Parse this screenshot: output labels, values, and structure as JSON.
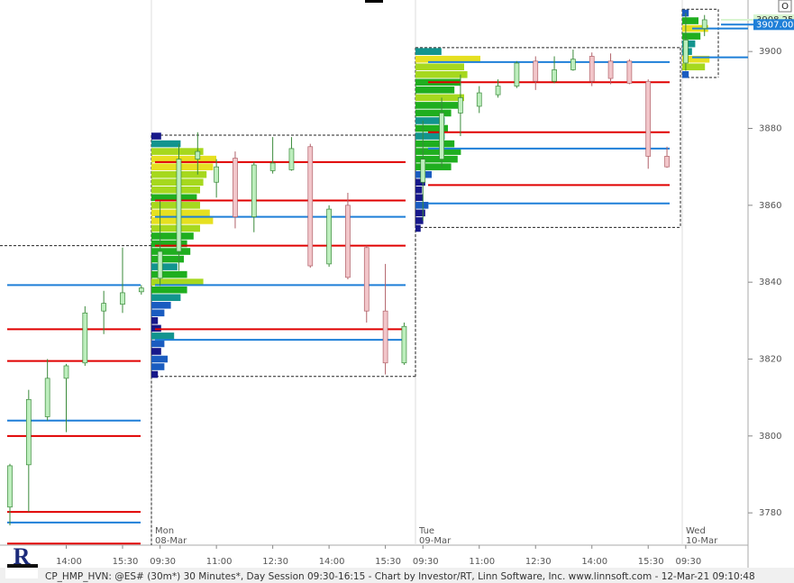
{
  "chart_data": {
    "type": "candlestick",
    "footer": "CP_HMP_HVN: @ES# (30m*) 30 Minutes*, Day Session 09:30-16:15 - Chart by Investor/RT, Linn Software, Inc. www.linnsoft.com - 12-Mar-21 09:10:48",
    "logo": "R",
    "button": "O",
    "up_color": "#bdeebd",
    "down_color": "#f2c6ca",
    "ylim": [
      3771.6,
      3913.4
    ],
    "yticks": [
      3780,
      3800,
      3820,
      3840,
      3860,
      3880,
      3900
    ],
    "price_labels": [
      {
        "value": 3908.25,
        "color": "#d8f5d0"
      },
      {
        "value": {
          "value": 3907,
          "label": "3907.00"
        },
        "color": "#1e7fd8"
      }
    ],
    "categories": [
      null,
      null,
      null,
      "14:00",
      null,
      null,
      "15:30",
      null,
      "09:30",
      null,
      null,
      "11:00",
      null,
      null,
      "12:30",
      null,
      null,
      "14:00",
      null,
      null,
      "15:30",
      null,
      "09:30",
      null,
      null,
      "11:00",
      null,
      null,
      "12:30",
      null,
      null,
      "14:00",
      null,
      null,
      "15:30",
      null,
      "09:30",
      null
    ],
    "candles": [
      {
        "open": 3781.5,
        "high": 3792.75,
        "low": 3776.75,
        "close": 3792.25
      },
      {
        "open": 3792.5,
        "high": 3812,
        "low": 3780.25,
        "close": 3809.5
      },
      {
        "open": 3805,
        "high": 3820,
        "low": 3804,
        "close": 3815
      },
      {
        "open": 3815,
        "high": 3818.75,
        "low": 3801,
        "close": 3818.25
      },
      {
        "open": 3819,
        "high": 3833.75,
        "low": 3818.25,
        "close": 3832
      },
      {
        "open": 3832.5,
        "high": 3837.75,
        "low": 3826.5,
        "close": 3834.5
      },
      {
        "open": 3834.25,
        "high": 3849,
        "low": 3832,
        "close": 3837.25
      },
      {
        "open": 3837.5,
        "high": 3839.25,
        "low": 3836.75,
        "close": 3838.5
      },
      {
        "open": 3841,
        "high": 3861,
        "low": 3839,
        "close": 3848
      },
      {
        "open": 3848,
        "high": 3876,
        "low": 3843,
        "close": 3872
      },
      {
        "open": 3872,
        "high": 3879,
        "low": 3868,
        "close": 3874
      },
      {
        "open": 3866,
        "high": 3872,
        "low": 3862,
        "close": 3870
      },
      {
        "open": 3872.25,
        "high": 3874,
        "low": 3854,
        "close": 3857
      },
      {
        "open": 3857,
        "high": 3871.25,
        "low": 3853,
        "close": 3870.5
      },
      {
        "open": 3869,
        "high": 3877.75,
        "low": 3868.25,
        "close": 3871
      },
      {
        "open": 3869.25,
        "high": 3877.75,
        "low": 3869,
        "close": 3874.75
      },
      {
        "open": 3875.25,
        "high": 3876,
        "low": 3843.75,
        "close": 3844.25
      },
      {
        "open": 3844.75,
        "high": 3860,
        "low": 3844,
        "close": 3859
      },
      {
        "open": 3860,
        "high": 3863.25,
        "low": 3840.75,
        "close": 3841.25
      },
      {
        "open": 3849,
        "high": 3849.5,
        "low": 3829.5,
        "close": 3832.5
      },
      {
        "open": 3832.5,
        "high": 3844.75,
        "low": 3816,
        "close": 3819
      },
      {
        "open": 3819,
        "high": 3829.5,
        "low": 3818.5,
        "close": 3828.5
      },
      {
        "open": 3866,
        "high": 3882,
        "low": 3856,
        "close": 3872
      },
      {
        "open": 3872,
        "high": 3888,
        "low": 3870,
        "close": 3884
      },
      {
        "open": 3884,
        "high": 3894,
        "low": 3878,
        "close": 3888
      },
      {
        "open": 3885.75,
        "high": 3891,
        "low": 3884,
        "close": 3889.25
      },
      {
        "open": 3888.75,
        "high": 3892.75,
        "low": 3888,
        "close": 3891
      },
      {
        "open": 3891,
        "high": 3897.5,
        "low": 3890.5,
        "close": 3897
      },
      {
        "open": 3897.5,
        "high": 3898.75,
        "low": 3890,
        "close": 3892.25
      },
      {
        "open": 3892.25,
        "high": 3898.75,
        "low": 3891.75,
        "close": 3895.25
      },
      {
        "open": 3895.25,
        "high": 3900.5,
        "low": 3895,
        "close": 3898
      },
      {
        "open": 3898.75,
        "high": 3899.75,
        "low": 3891,
        "close": 3892.25
      },
      {
        "open": 3897.5,
        "high": 3899.5,
        "low": 3891.5,
        "close": 3893
      },
      {
        "open": 3897.5,
        "high": 3898,
        "low": 3891.5,
        "close": 3891.75
      },
      {
        "open": 3892.25,
        "high": 3892.75,
        "low": 3869.5,
        "close": 3872.75
      },
      {
        "open": 3872.75,
        "high": 3875.25,
        "low": 3869.75,
        "close": 3870
      },
      {
        "open": 3897,
        "high": 3910,
        "low": 3895,
        "close": 3903
      },
      {
        "open": 3906,
        "high": 3909.5,
        "low": 3904,
        "close": 3908.25
      }
    ],
    "sessions": [
      {
        "box": {
          "high": 3849.5
        },
        "levels": [
          {
            "price": 3839.25,
            "color": "#1e7fd8"
          },
          {
            "price": 3827.75,
            "color": "#e00000"
          },
          {
            "price": 3819.5,
            "color": "#e00000"
          },
          {
            "price": 3804,
            "color": "#1e7fd8"
          },
          {
            "price": 3800,
            "color": "#e00000"
          },
          {
            "price": 3780.25,
            "color": "#e00000"
          },
          {
            "price": 3777.5,
            "color": "#1e7fd8"
          },
          {
            "price": 3772,
            "color": "#e00000"
          }
        ]
      },
      {
        "day": "Mon",
        "date": "08-Mar",
        "box": {
          "high": 3878.25,
          "low": 3815.5
        },
        "levels": [
          {
            "price": 3871.25,
            "color": "#e00000"
          },
          {
            "price": 3861.25,
            "color": "#e00000"
          },
          {
            "price": 3857,
            "color": "#1e7fd8"
          },
          {
            "price": 3849.5,
            "color": "#e00000"
          },
          {
            "price": 3839.25,
            "color": "#1e7fd8"
          },
          {
            "price": 3827.75,
            "color": "#e00000"
          },
          {
            "price": 3825,
            "color": "#1e7fd8"
          }
        ],
        "profile": {
          "prices": [
            3816,
            3818,
            3820,
            3822,
            3824,
            3826,
            3828,
            3830,
            3832,
            3834,
            3836,
            3838,
            3840,
            3842,
            3844,
            3846,
            3848,
            3850,
            3852,
            3854,
            3856,
            3858,
            3860,
            3862,
            3864,
            3866,
            3868,
            3870,
            3872,
            3874,
            3876,
            3878
          ],
          "values": [
            10,
            20,
            25,
            15,
            20,
            35,
            15,
            10,
            20,
            30,
            45,
            55,
            80,
            55,
            40,
            50,
            60,
            55,
            65,
            75,
            95,
            90,
            75,
            70,
            75,
            80,
            85,
            95,
            100,
            80,
            45,
            15
          ]
        }
      },
      {
        "day": "Tue",
        "date": "09-Mar",
        "box": {
          "high": 3901,
          "low": 3854.25
        },
        "levels": [
          {
            "price": 3897.25,
            "color": "#1e7fd8"
          },
          {
            "price": 3892,
            "color": "#e00000"
          },
          {
            "price": 3879,
            "color": "#e00000"
          },
          {
            "price": 3874.75,
            "color": "#1e7fd8"
          },
          {
            "price": 3865.25,
            "color": "#e00000"
          },
          {
            "price": 3860.5,
            "color": "#1e7fd8"
          }
        ],
        "profile": {
          "prices": [
            3854,
            3856,
            3858,
            3860,
            3862,
            3864,
            3866,
            3868,
            3870,
            3872,
            3874,
            3876,
            3878,
            3880,
            3882,
            3884,
            3886,
            3888,
            3890,
            3892,
            3894,
            3896,
            3898,
            3900
          ],
          "values": [
            8,
            12,
            15,
            20,
            12,
            10,
            15,
            25,
            55,
            65,
            70,
            60,
            45,
            50,
            45,
            55,
            70,
            75,
            60,
            70,
            80,
            75,
            100,
            40
          ]
        }
      },
      {
        "day": "Wed",
        "date": "10-Mar",
        "box": {
          "high": 3911,
          "low": 3893.25
        },
        "levels": [
          {
            "price": 3906,
            "color": "#1e7fd8"
          },
          {
            "price": 3898.5,
            "color": "#1e7fd8"
          }
        ],
        "profile": {
          "prices": [
            3894,
            3896,
            3898,
            3900,
            3902,
            3904,
            3906,
            3908,
            3910
          ],
          "values": [
            10,
            35,
            42,
            15,
            20,
            28,
            40,
            25,
            10
          ]
        }
      }
    ]
  }
}
